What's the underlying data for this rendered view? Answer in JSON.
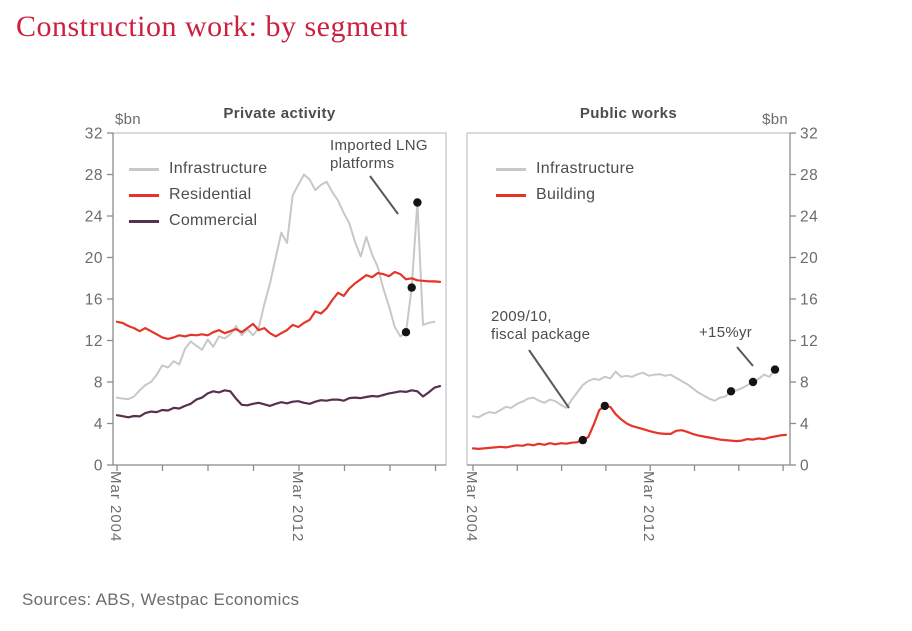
{
  "page": {
    "title": "Construction work: by segment",
    "title_color": "#cd1f3e",
    "sources": "Sources: ABS, Westpac Economics",
    "colors": {
      "axis": "#898b8e",
      "frame": "#b3b5b7",
      "dot": "#141414",
      "callout": "#58595b",
      "label_text": "#6a6c6e",
      "dark_text": "#4c4d4f"
    }
  },
  "chart_data": [
    {
      "type": "line",
      "panel": "left",
      "title": "Private activity",
      "unit_label": "$bn",
      "ylim": [
        0,
        32
      ],
      "yticks": [
        0,
        4,
        8,
        12,
        16,
        20,
        24,
        28,
        32
      ],
      "x_axis": {
        "start_label": "Mar 2004",
        "mid_label": "Mar 2012",
        "frequency": "quarterly",
        "tick_interval_years": 2
      },
      "legend_position": "top-left-inside",
      "series": [
        {
          "name": "Infrastructure",
          "color": "#c7c8ca",
          "values": [
            6.5,
            6.4,
            6.35,
            6.6,
            7.2,
            7.7,
            8.0,
            8.7,
            9.6,
            9.4,
            10.0,
            9.7,
            11.2,
            11.9,
            11.5,
            11.1,
            12.1,
            11.4,
            12.4,
            12.2,
            12.6,
            13.4,
            12.5,
            13.1,
            12.5,
            13.2,
            15.5,
            17.5,
            20.0,
            22.4,
            21.4,
            26.0,
            27.0,
            28.0,
            27.5,
            26.5,
            27.0,
            27.3,
            26.3,
            25.5,
            24.3,
            23.3,
            21.5,
            20.1,
            22.0,
            20.3,
            19.1,
            17.0,
            15.3,
            13.3,
            12.4,
            12.8,
            17.1,
            25.3,
            13.5,
            13.7,
            13.8
          ],
          "dot_indices": [
            51,
            52,
            53
          ],
          "dot_values": [
            12.8,
            17.1,
            25.3
          ]
        },
        {
          "name": "Residential",
          "color": "#e53529",
          "values": [
            13.8,
            13.7,
            13.4,
            13.2,
            12.9,
            13.2,
            12.9,
            12.6,
            12.3,
            12.15,
            12.3,
            12.5,
            12.4,
            12.55,
            12.5,
            12.6,
            12.5,
            12.8,
            13.0,
            12.7,
            12.9,
            13.1,
            12.8,
            13.2,
            13.6,
            13.0,
            13.2,
            12.7,
            12.4,
            12.7,
            13.0,
            13.5,
            13.3,
            13.7,
            14.0,
            14.8,
            14.6,
            15.1,
            15.9,
            16.6,
            16.3,
            17.0,
            17.5,
            17.9,
            18.3,
            18.1,
            18.5,
            18.4,
            18.2,
            18.6,
            18.4,
            17.9,
            18.0,
            17.8,
            17.75,
            17.7,
            17.7,
            17.65
          ],
          "dot_indices": []
        },
        {
          "name": "Commercial",
          "color": "#57304e",
          "values": [
            4.8,
            4.7,
            4.6,
            4.72,
            4.68,
            5.0,
            5.15,
            5.1,
            5.3,
            5.25,
            5.5,
            5.45,
            5.7,
            5.9,
            6.3,
            6.5,
            6.9,
            7.1,
            7.0,
            7.2,
            7.1,
            6.4,
            5.8,
            5.75,
            5.9,
            6.0,
            5.85,
            5.7,
            5.9,
            6.05,
            5.95,
            6.1,
            6.15,
            6.0,
            5.9,
            6.1,
            6.25,
            6.2,
            6.3,
            6.3,
            6.2,
            6.45,
            6.5,
            6.45,
            6.55,
            6.65,
            6.6,
            6.75,
            6.9,
            7.0,
            7.1,
            7.05,
            7.2,
            7.1,
            6.6,
            7.0,
            7.45,
            7.6
          ],
          "dot_indices": []
        }
      ],
      "annotations": [
        {
          "text": "Imported LNG\nplatforms"
        }
      ]
    },
    {
      "type": "line",
      "panel": "right",
      "title": "Public works",
      "unit_label": "$bn",
      "ylim": [
        0,
        32
      ],
      "yticks": [
        0,
        4,
        8,
        12,
        16,
        20,
        24,
        28,
        32
      ],
      "x_axis": {
        "start_label": "Mar 2004",
        "mid_label": "Mar 2012",
        "frequency": "quarterly",
        "tick_interval_years": 2
      },
      "legend_position": "top-left-inside",
      "series": [
        {
          "name": "Infrastructure",
          "color": "#c7c8ca",
          "values": [
            4.7,
            4.6,
            4.9,
            5.1,
            5.0,
            5.3,
            5.6,
            5.5,
            5.9,
            6.1,
            6.4,
            6.5,
            6.2,
            6.0,
            6.3,
            6.15,
            5.8,
            5.5,
            6.3,
            7.0,
            7.7,
            8.1,
            8.3,
            8.2,
            8.5,
            8.35,
            9.0,
            8.5,
            8.6,
            8.5,
            8.75,
            8.9,
            8.6,
            8.7,
            8.75,
            8.6,
            8.7,
            8.4,
            8.1,
            7.8,
            7.4,
            7.0,
            6.7,
            6.4,
            6.2,
            6.5,
            6.6,
            7.1,
            7.2,
            7.4,
            7.7,
            8.0,
            8.3,
            8.7,
            8.5,
            9.2
          ],
          "dot_indices": [
            47,
            51,
            55
          ],
          "dot_values": [
            7.1,
            8.0,
            9.2
          ]
        },
        {
          "name": "Building",
          "color": "#e53529",
          "values": [
            1.6,
            1.55,
            1.6,
            1.65,
            1.7,
            1.75,
            1.7,
            1.8,
            1.9,
            1.85,
            2.0,
            1.9,
            2.05,
            1.95,
            2.1,
            2.0,
            2.1,
            2.05,
            2.15,
            2.2,
            2.4,
            2.7,
            3.9,
            5.3,
            5.7,
            5.6,
            4.9,
            4.4,
            4.0,
            3.75,
            3.6,
            3.45,
            3.3,
            3.15,
            3.05,
            3.0,
            3.0,
            3.3,
            3.35,
            3.2,
            3.0,
            2.85,
            2.75,
            2.65,
            2.55,
            2.45,
            2.4,
            2.35,
            2.3,
            2.35,
            2.5,
            2.45,
            2.55,
            2.5,
            2.65,
            2.75,
            2.85,
            2.9
          ],
          "dot_indices": [
            20,
            24
          ],
          "dot_values": [
            2.4,
            5.7
          ]
        }
      ],
      "annotations": [
        {
          "text": "2009/10,\nfiscal package"
        },
        {
          "text": "+15%yr"
        }
      ]
    }
  ]
}
